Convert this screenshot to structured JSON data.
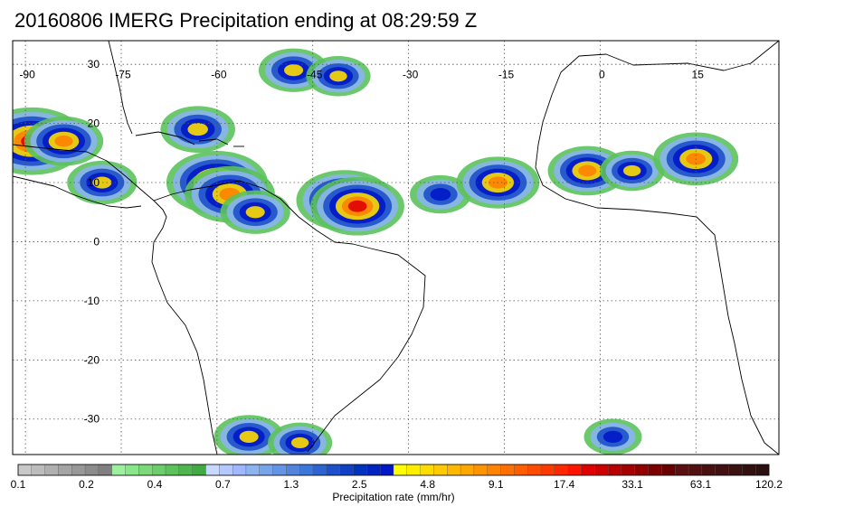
{
  "title": "20160806 IMERG Precipitation ending at 08:29:59 Z",
  "map": {
    "projection": "equirectangular",
    "lon_range": [
      -92,
      28
    ],
    "lat_range": [
      -36,
      34
    ],
    "lon_ticks": [
      -90,
      -75,
      -60,
      -45,
      -30,
      -15,
      0,
      15
    ],
    "lat_ticks": [
      30,
      20,
      10,
      0,
      -10,
      -20,
      -30
    ],
    "lon_tick_labels": [
      "-90",
      "-75",
      "-60",
      "-45",
      "-30",
      "-15",
      "0",
      "15"
    ],
    "lat_tick_labels": [
      "30",
      "20",
      "10",
      "0",
      "-10",
      "-20",
      "-30"
    ],
    "gridlines": "dotted"
  },
  "precip_cells": [
    {
      "lon": -89,
      "lat": 17,
      "peak": 30
    },
    {
      "lon": -84,
      "lat": 17,
      "peak": 12
    },
    {
      "lon": -78,
      "lat": 10,
      "peak": 8
    },
    {
      "lon": -63,
      "lat": 19,
      "peak": 10
    },
    {
      "lon": -60,
      "lat": 10,
      "peak": 25
    },
    {
      "lon": -58,
      "lat": 8,
      "peak": 18
    },
    {
      "lon": -54,
      "lat": 5,
      "peak": 8
    },
    {
      "lon": -48,
      "lat": 29,
      "peak": 8
    },
    {
      "lon": -41,
      "lat": 28,
      "peak": 6
    },
    {
      "lon": -40,
      "lat": 7,
      "peak": 22
    },
    {
      "lon": -38,
      "lat": 6,
      "peak": 20
    },
    {
      "lon": -25,
      "lat": 8,
      "peak": 5
    },
    {
      "lon": -16,
      "lat": 10,
      "peak": 14
    },
    {
      "lon": -2,
      "lat": 12,
      "peak": 12
    },
    {
      "lon": 5,
      "lat": 12,
      "peak": 6
    },
    {
      "lon": 15,
      "lat": 14,
      "peak": 15
    },
    {
      "lon": -55,
      "lat": -33,
      "peak": 8
    },
    {
      "lon": -47,
      "lat": -34,
      "peak": 6
    },
    {
      "lon": 2,
      "lat": -33,
      "peak": 4
    }
  ],
  "colorbar": {
    "tick_labels": [
      "0.1",
      "0.2",
      "0.4",
      "0.7",
      "1.3",
      "2.5",
      "4.8",
      "9.1",
      "17.4",
      "33.1",
      "63.1",
      "120.2"
    ],
    "label": "Precipitation rate (mm/hr)",
    "colors": [
      "#c8c8c8",
      "#bcbcbc",
      "#b0b0b0",
      "#a4a4a4",
      "#989898",
      "#8c8c8c",
      "#808080",
      "#9cf29c",
      "#8ae68a",
      "#7ada7a",
      "#6ace6a",
      "#5cc25c",
      "#4eb64e",
      "#42aa42",
      "#c8d8ff",
      "#b4c8ff",
      "#a0b8ff",
      "#8cb4f0",
      "#78a4ea",
      "#6494e4",
      "#5284de",
      "#3c78dc",
      "#2c64d4",
      "#1e50cc",
      "#1040c4",
      "#0032c0",
      "#0024c0",
      "#0018c8",
      "#ffff00",
      "#ffee00",
      "#ffdc00",
      "#ffca00",
      "#ffb800",
      "#ffa600",
      "#ff9400",
      "#ff8200",
      "#ff7000",
      "#ff5e00",
      "#ff4c00",
      "#ff3a00",
      "#ff2800",
      "#ff1400",
      "#e00000",
      "#cc0000",
      "#b80000",
      "#a40000",
      "#900000",
      "#7c0000",
      "#680000",
      "#5a1010",
      "#521010",
      "#4a1010",
      "#421010",
      "#3a1010",
      "#321010",
      "#2a1010"
    ]
  }
}
